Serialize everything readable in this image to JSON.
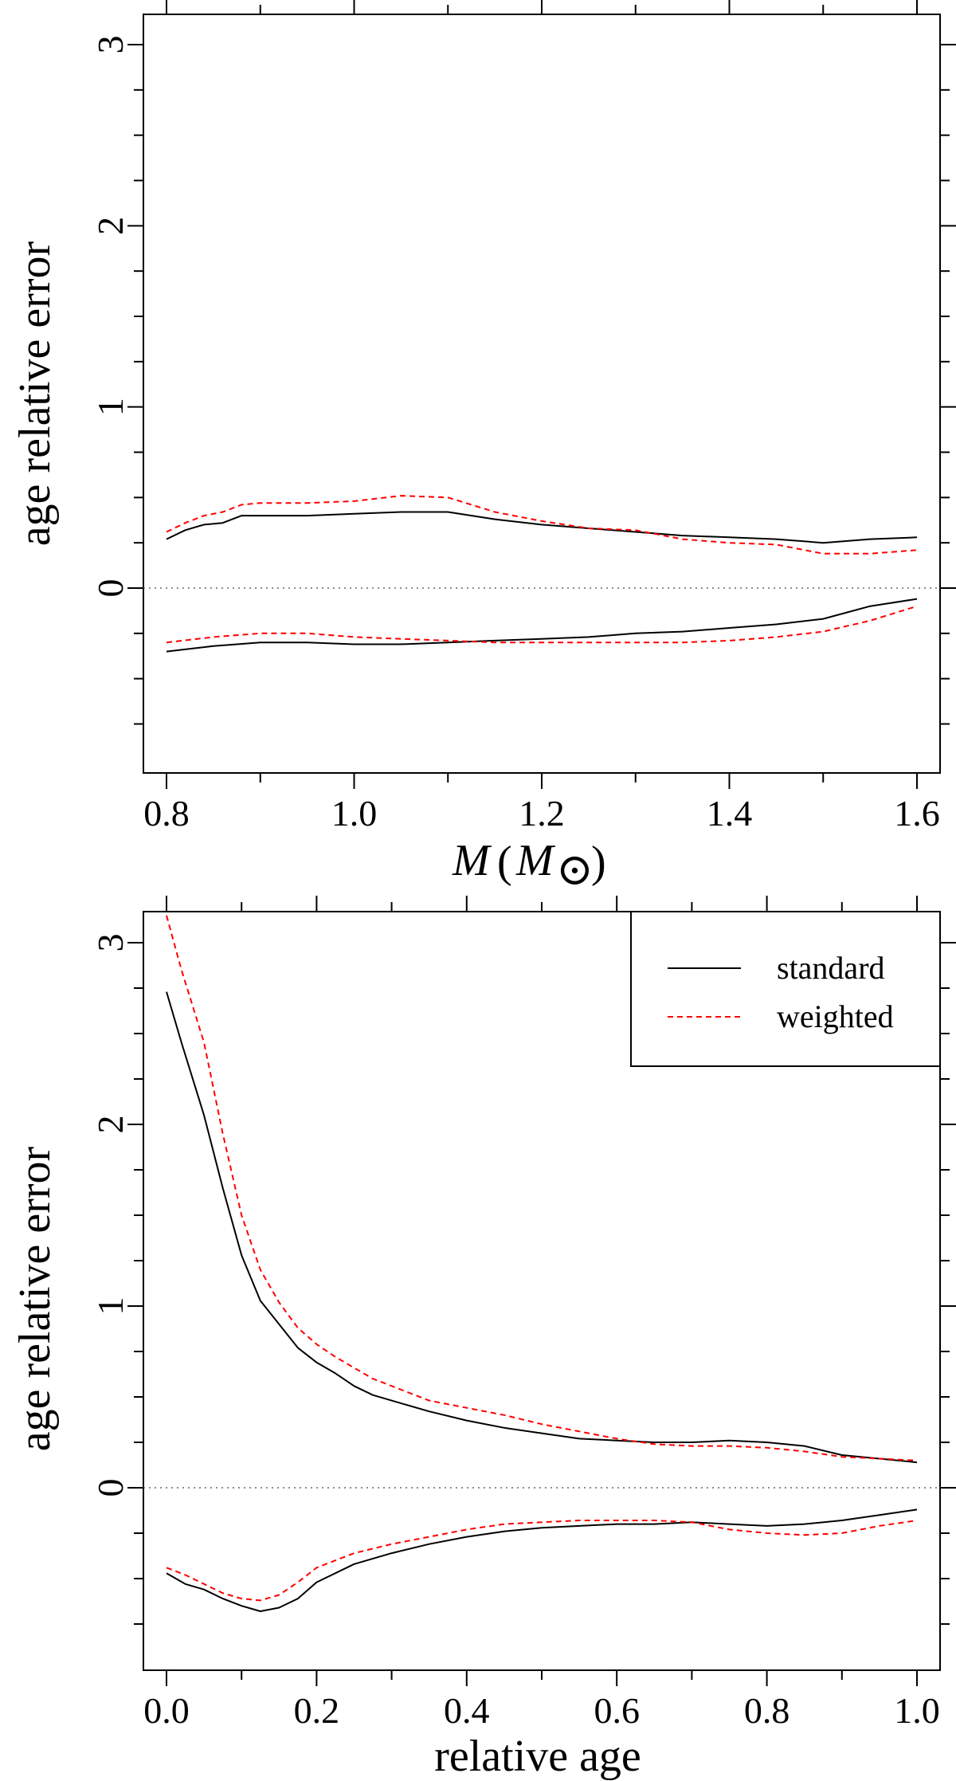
{
  "chart_data": [
    {
      "type": "line",
      "xlabel_main": "M",
      "xlabel_unit": "M",
      "xlabel_sun": "⊙",
      "ylabel": "age relative error",
      "xlim": [
        0.8,
        1.6
      ],
      "ylim": [
        -1.0,
        3.0
      ],
      "x_ticks": [
        0.8,
        1.0,
        1.2,
        1.4,
        1.6
      ],
      "x_tick_labels": [
        "0.8",
        "1.0",
        "1.2",
        "1.4",
        "1.6"
      ],
      "y_ticks": [
        0,
        1,
        2,
        3
      ],
      "y_tick_labels": [
        "0",
        "1",
        "2",
        "3"
      ],
      "reference_line": 0,
      "series": [
        {
          "color": "#000000",
          "dash": "solid",
          "upper": {
            "x": [
              0.8,
              0.82,
              0.84,
              0.86,
              0.88,
              0.9,
              0.95,
              1.0,
              1.05,
              1.1,
              1.15,
              1.2,
              1.25,
              1.3,
              1.35,
              1.4,
              1.45,
              1.5,
              1.55,
              1.6
            ],
            "y": [
              0.27,
              0.32,
              0.35,
              0.36,
              0.4,
              0.4,
              0.4,
              0.41,
              0.42,
              0.42,
              0.38,
              0.35,
              0.33,
              0.31,
              0.29,
              0.28,
              0.27,
              0.25,
              0.27,
              0.28
            ]
          },
          "lower": {
            "x": [
              0.8,
              0.85,
              0.9,
              0.95,
              1.0,
              1.05,
              1.1,
              1.15,
              1.2,
              1.25,
              1.3,
              1.35,
              1.4,
              1.45,
              1.5,
              1.55,
              1.6
            ],
            "y": [
              -0.35,
              -0.32,
              -0.3,
              -0.3,
              -0.31,
              -0.31,
              -0.3,
              -0.29,
              -0.28,
              -0.27,
              -0.25,
              -0.24,
              -0.22,
              -0.2,
              -0.17,
              -0.1,
              -0.06
            ]
          }
        },
        {
          "color": "#ff0000",
          "dash": "dashed",
          "upper": {
            "x": [
              0.8,
              0.82,
              0.84,
              0.86,
              0.88,
              0.9,
              0.95,
              1.0,
              1.05,
              1.1,
              1.15,
              1.2,
              1.25,
              1.3,
              1.35,
              1.4,
              1.45,
              1.5,
              1.55,
              1.6
            ],
            "y": [
              0.31,
              0.36,
              0.4,
              0.42,
              0.46,
              0.47,
              0.47,
              0.48,
              0.51,
              0.5,
              0.42,
              0.37,
              0.33,
              0.32,
              0.27,
              0.25,
              0.24,
              0.19,
              0.19,
              0.21
            ]
          },
          "lower": {
            "x": [
              0.8,
              0.85,
              0.9,
              0.95,
              1.0,
              1.05,
              1.1,
              1.15,
              1.2,
              1.25,
              1.3,
              1.35,
              1.4,
              1.45,
              1.5,
              1.55,
              1.6
            ],
            "y": [
              -0.3,
              -0.27,
              -0.25,
              -0.25,
              -0.27,
              -0.28,
              -0.29,
              -0.3,
              -0.3,
              -0.3,
              -0.3,
              -0.3,
              -0.29,
              -0.27,
              -0.24,
              -0.18,
              -0.1
            ]
          }
        }
      ]
    },
    {
      "type": "line",
      "xlabel": "relative age",
      "ylabel": "age relative error",
      "xlim": [
        0.0,
        1.0
      ],
      "ylim": [
        -0.95,
        3.2
      ],
      "x_ticks": [
        0.0,
        0.2,
        0.4,
        0.6,
        0.8,
        1.0
      ],
      "x_tick_labels": [
        "0.0",
        "0.2",
        "0.4",
        "0.6",
        "0.8",
        "1.0"
      ],
      "y_ticks": [
        0,
        1,
        2,
        3
      ],
      "y_tick_labels": [
        "0",
        "1",
        "2",
        "3"
      ],
      "reference_line": 0,
      "legend": {
        "position": "top-right",
        "labels": [
          "standard",
          "weighted"
        ]
      },
      "series": [
        {
          "name": "standard",
          "color": "#000000",
          "dash": "solid",
          "upper": {
            "x": [
              0.0,
              0.02,
              0.05,
              0.075,
              0.1,
              0.125,
              0.15,
              0.175,
              0.2,
              0.225,
              0.25,
              0.275,
              0.3,
              0.35,
              0.4,
              0.45,
              0.5,
              0.55,
              0.6,
              0.65,
              0.7,
              0.75,
              0.8,
              0.85,
              0.9,
              0.95,
              1.0
            ],
            "y": [
              2.73,
              2.45,
              2.05,
              1.65,
              1.28,
              1.03,
              0.9,
              0.77,
              0.69,
              0.63,
              0.56,
              0.51,
              0.48,
              0.42,
              0.37,
              0.33,
              0.3,
              0.27,
              0.26,
              0.25,
              0.25,
              0.26,
              0.25,
              0.23,
              0.18,
              0.16,
              0.14
            ]
          },
          "lower": {
            "x": [
              0.0,
              0.025,
              0.05,
              0.075,
              0.1,
              0.125,
              0.15,
              0.175,
              0.2,
              0.25,
              0.3,
              0.35,
              0.4,
              0.45,
              0.5,
              0.55,
              0.6,
              0.65,
              0.7,
              0.75,
              0.8,
              0.85,
              0.9,
              0.95,
              1.0
            ],
            "y": [
              -0.47,
              -0.53,
              -0.56,
              -0.61,
              -0.65,
              -0.68,
              -0.66,
              -0.61,
              -0.52,
              -0.42,
              -0.36,
              -0.31,
              -0.27,
              -0.24,
              -0.22,
              -0.21,
              -0.2,
              -0.2,
              -0.19,
              -0.2,
              -0.21,
              -0.2,
              -0.18,
              -0.15,
              -0.12
            ]
          }
        },
        {
          "name": "weighted",
          "color": "#ff0000",
          "dash": "dashed",
          "upper": {
            "x": [
              0.0,
              0.02,
              0.05,
              0.075,
              0.1,
              0.125,
              0.15,
              0.175,
              0.2,
              0.225,
              0.25,
              0.275,
              0.3,
              0.35,
              0.4,
              0.45,
              0.5,
              0.55,
              0.6,
              0.65,
              0.7,
              0.75,
              0.8,
              0.85,
              0.9,
              0.95,
              1.0
            ],
            "y": [
              3.15,
              2.85,
              2.45,
              1.95,
              1.5,
              1.2,
              1.02,
              0.88,
              0.79,
              0.72,
              0.66,
              0.6,
              0.56,
              0.48,
              0.44,
              0.4,
              0.35,
              0.31,
              0.27,
              0.24,
              0.23,
              0.23,
              0.22,
              0.2,
              0.17,
              0.16,
              0.15
            ]
          },
          "lower": {
            "x": [
              0.0,
              0.025,
              0.05,
              0.075,
              0.1,
              0.125,
              0.15,
              0.175,
              0.2,
              0.25,
              0.3,
              0.35,
              0.4,
              0.45,
              0.5,
              0.55,
              0.6,
              0.65,
              0.7,
              0.75,
              0.8,
              0.85,
              0.9,
              0.95,
              1.0
            ],
            "y": [
              -0.44,
              -0.48,
              -0.53,
              -0.58,
              -0.61,
              -0.62,
              -0.59,
              -0.52,
              -0.44,
              -0.36,
              -0.31,
              -0.27,
              -0.23,
              -0.2,
              -0.19,
              -0.18,
              -0.18,
              -0.18,
              -0.19,
              -0.23,
              -0.25,
              -0.26,
              -0.25,
              -0.21,
              -0.18
            ]
          }
        }
      ]
    }
  ]
}
